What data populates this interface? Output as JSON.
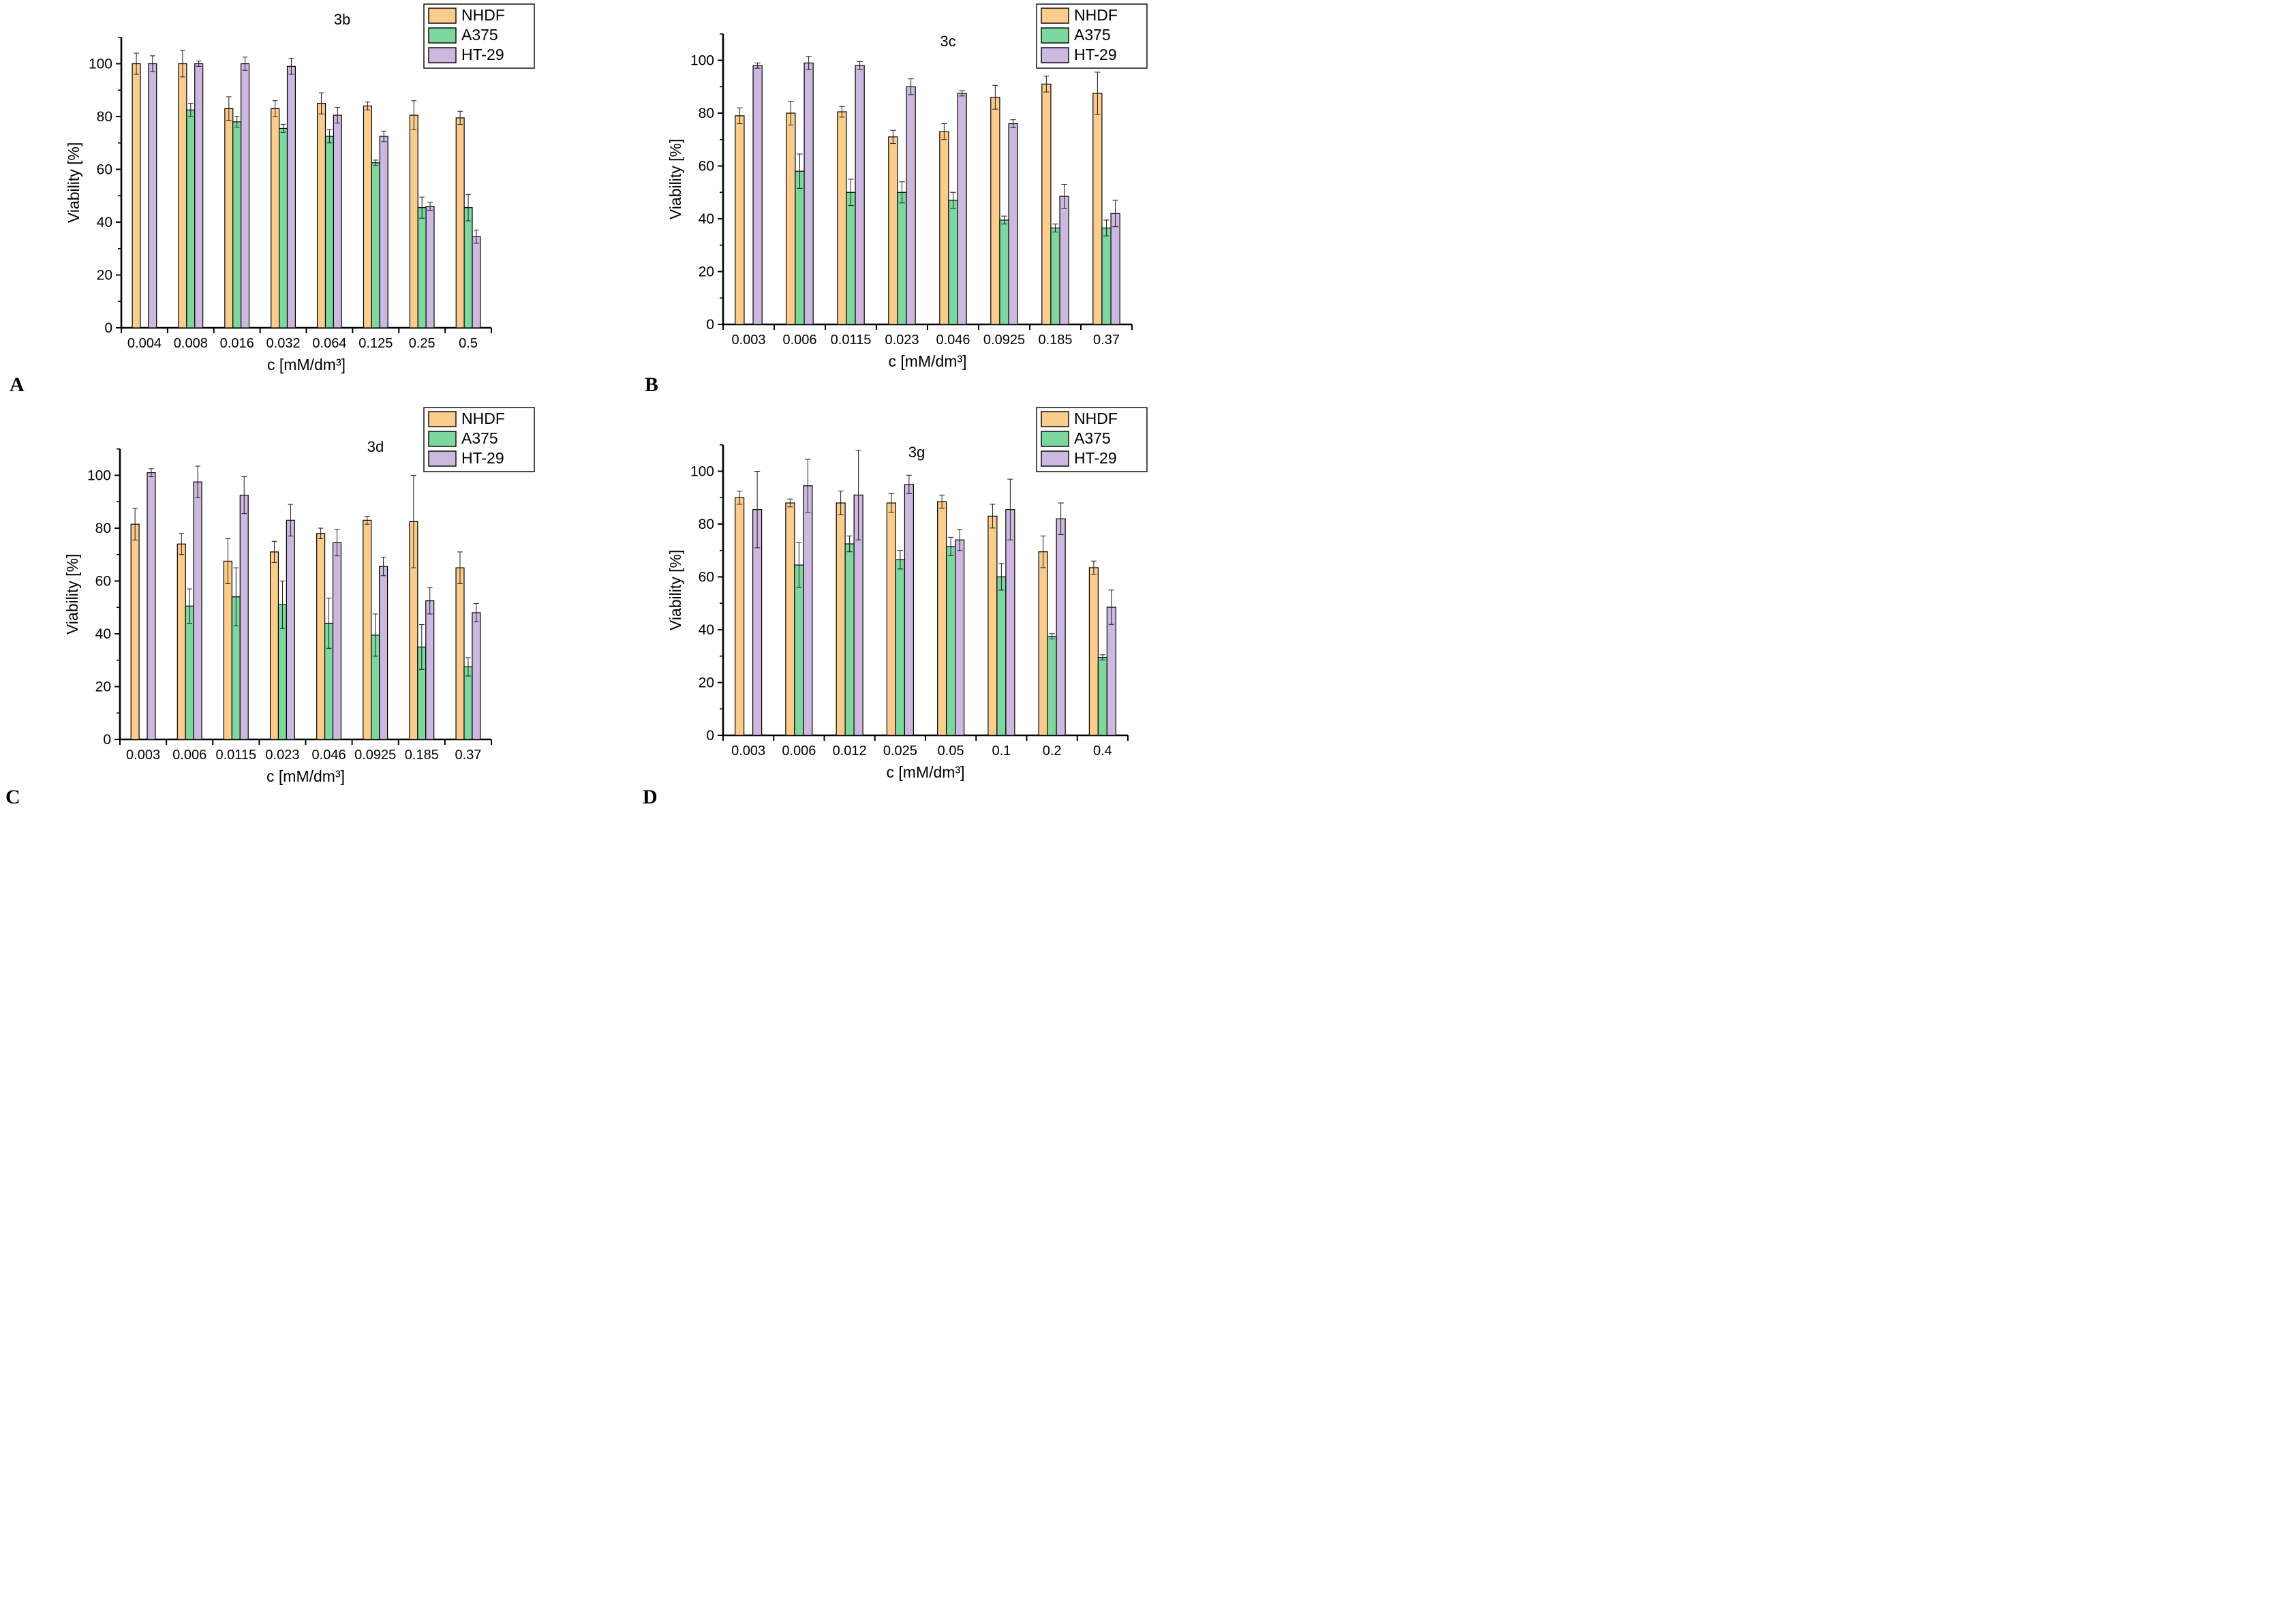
{
  "figure": {
    "background": "#ffffff",
    "ylabel": "Viability [%]",
    "xlabel": "c [mM/dm³]",
    "yticks": [
      0,
      20,
      40,
      60,
      80,
      100
    ],
    "ylim": [
      0,
      110
    ],
    "grid": "off",
    "legend_position": "top-right",
    "legend": [
      {
        "label": "NHDF",
        "color": "#FBCD8D"
      },
      {
        "label": "A375",
        "color": "#7FD7A0"
      },
      {
        "label": "HT-29",
        "color": "#CDB9DF"
      }
    ]
  },
  "chart_data": [
    {
      "type": "bar",
      "panel": "A",
      "corner_label": "A",
      "title": "3b",
      "xlabel": "c [mM/dm³]",
      "ylabel": "Viability [%]",
      "ylim": [
        0,
        110
      ],
      "categories": [
        "0.004",
        "0.008",
        "0.016",
        "0.032",
        "0.064",
        "0.125",
        "0.25",
        "0.5"
      ],
      "series": [
        {
          "name": "NHDF",
          "color": "#FBCD8D",
          "values": [
            100,
            100,
            83,
            83,
            85,
            84,
            80.5,
            79.5
          ],
          "errors": [
            4,
            5,
            4.5,
            3,
            4,
            1.5,
            5.5,
            2.5
          ]
        },
        {
          "name": "A375",
          "color": "#7FD7A0",
          "values": [
            null,
            82.5,
            78,
            75.5,
            72.5,
            62.5,
            45.5,
            45.5
          ],
          "errors": [
            null,
            2.5,
            2,
            1.5,
            2.5,
            1,
            4,
            5
          ]
        },
        {
          "name": "HT-29",
          "color": "#CDB9DF",
          "values": [
            100,
            100,
            100,
            99,
            80.5,
            72.5,
            46,
            34.5
          ],
          "errors": [
            3,
            1,
            2.5,
            3,
            3,
            2,
            1.5,
            2.5
          ]
        }
      ]
    },
    {
      "type": "bar",
      "panel": "B",
      "corner_label": "B",
      "title": "3c",
      "xlabel": "c [mM/dm³]",
      "ylabel": "Viability [%]",
      "ylim": [
        0,
        110
      ],
      "categories": [
        "0.003",
        "0.006",
        "0.0115",
        "0.023",
        "0.046",
        "0.0925",
        "0.185",
        "0.37"
      ],
      "series": [
        {
          "name": "NHDF",
          "color": "#FBCD8D",
          "values": [
            79,
            80,
            80.5,
            71,
            73,
            86,
            91,
            87.5
          ],
          "errors": [
            3,
            4.5,
            2,
            2.5,
            3,
            4.5,
            3,
            8
          ]
        },
        {
          "name": "A375",
          "color": "#7FD7A0",
          "values": [
            null,
            58,
            50,
            50,
            47,
            39.5,
            36.5,
            36.5
          ],
          "errors": [
            null,
            6.5,
            5,
            4,
            3,
            1.5,
            1.5,
            3
          ]
        },
        {
          "name": "HT-29",
          "color": "#CDB9DF",
          "values": [
            98,
            99,
            98,
            90,
            87.5,
            76,
            48.5,
            42
          ],
          "errors": [
            1,
            2.5,
            1.5,
            3,
            1,
            1.5,
            4.5,
            5
          ]
        }
      ]
    },
    {
      "type": "bar",
      "panel": "C",
      "corner_label": "C",
      "title": "3d",
      "xlabel": "c [mM/dm³]",
      "ylabel": "Viability [%]",
      "ylim": [
        0,
        110
      ],
      "categories": [
        "0.003",
        "0.006",
        "0.0115",
        "0.023",
        "0.046",
        "0.0925",
        "0.185",
        "0.37"
      ],
      "series": [
        {
          "name": "NHDF",
          "color": "#FBCD8D",
          "values": [
            81.5,
            74,
            67.5,
            71,
            78,
            83,
            82.5,
            65
          ],
          "errors": [
            6,
            4,
            8.5,
            4,
            2,
            1.5,
            17.5,
            6
          ]
        },
        {
          "name": "A375",
          "color": "#7FD7A0",
          "values": [
            null,
            50.5,
            54,
            51,
            44,
            39.5,
            35,
            27.5
          ],
          "errors": [
            null,
            6.5,
            11,
            9,
            9.5,
            8,
            8.5,
            3.5
          ]
        },
        {
          "name": "HT-29",
          "color": "#CDB9DF",
          "values": [
            101,
            97.5,
            92.5,
            83,
            74.5,
            65.5,
            52.5,
            48
          ],
          "errors": [
            1.5,
            6,
            7,
            6,
            5,
            3.5,
            5,
            3.5
          ]
        }
      ]
    },
    {
      "type": "bar",
      "panel": "D",
      "corner_label": "D",
      "title": "3g",
      "xlabel": "c [mM/dm³]",
      "ylabel": "Viability [%]",
      "ylim": [
        0,
        110
      ],
      "categories": [
        "0.003",
        "0.006",
        "0.012",
        "0.025",
        "0.05",
        "0.1",
        "0.2",
        "0.4"
      ],
      "series": [
        {
          "name": "NHDF",
          "color": "#FBCD8D",
          "values": [
            90,
            88,
            88,
            88,
            88.5,
            83,
            69.5,
            63.5
          ],
          "errors": [
            2.5,
            1.5,
            4.5,
            3.5,
            2.5,
            4.5,
            6,
            2.5
          ]
        },
        {
          "name": "A375",
          "color": "#7FD7A0",
          "values": [
            null,
            64.5,
            72.5,
            66.5,
            71.5,
            60,
            37.5,
            29.5
          ],
          "errors": [
            null,
            8.5,
            3,
            3.5,
            3.5,
            5,
            1,
            1
          ]
        },
        {
          "name": "HT-29",
          "color": "#CDB9DF",
          "values": [
            85.5,
            94.5,
            91,
            95,
            74,
            85.5,
            82,
            48.5
          ],
          "errors": [
            14.5,
            10,
            17,
            3.5,
            4,
            11.5,
            6,
            6.5
          ]
        }
      ]
    }
  ]
}
